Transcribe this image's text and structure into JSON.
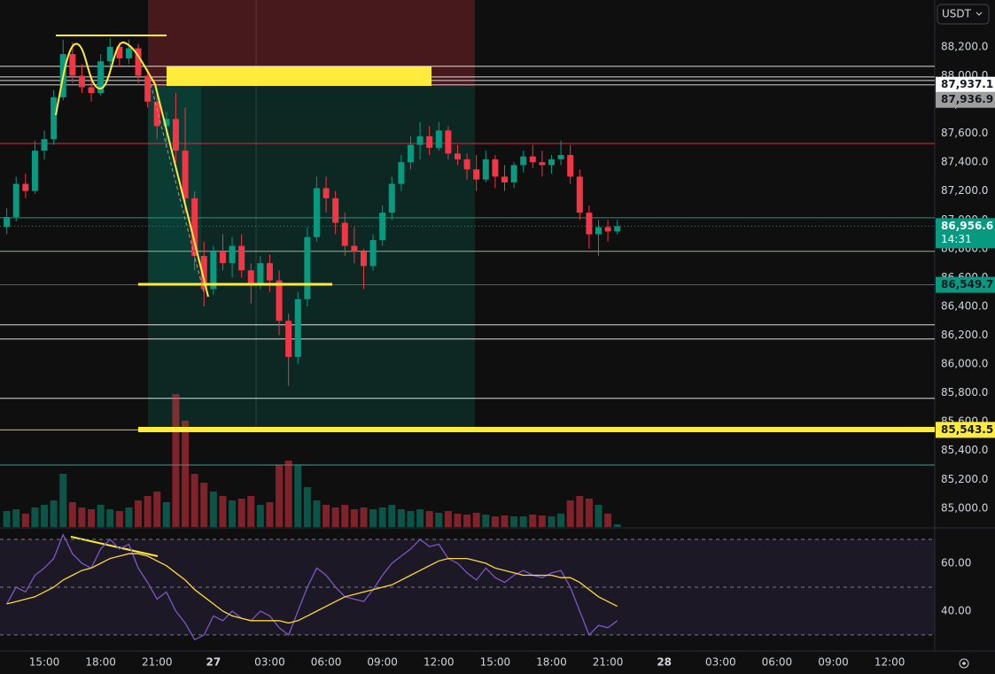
{
  "chart_data": {
    "type": "candlestick",
    "currency": "USDT",
    "x": [
      13,
      13.5,
      14,
      14.5,
      15,
      15.5,
      16,
      16.5,
      17,
      17.5,
      18,
      18.5,
      19,
      19.5,
      20,
      20.5,
      21,
      21.5,
      22,
      22.5,
      23,
      23.5,
      24,
      24.5,
      25,
      25.5,
      26,
      26.5,
      27,
      27.5,
      28,
      28.5,
      29,
      29.5,
      30,
      30.5,
      31,
      31.5,
      32,
      32.5,
      33,
      33.5,
      34,
      34.5,
      35,
      35.5,
      36,
      36.5,
      37,
      37.5,
      38,
      38.5,
      39,
      39.5,
      40,
      40.5,
      41,
      41.5,
      42,
      42.5,
      43,
      43.5,
      44,
      44.5,
      45,
      45.5
    ],
    "open": [
      86950,
      87020,
      87250,
      87200,
      87480,
      87560,
      87850,
      88150,
      88000,
      87920,
      87880,
      88100,
      88200,
      88120,
      88190,
      88000,
      87820,
      87650,
      87700,
      87480,
      87150,
      86750,
      86520,
      86780,
      86700,
      86820,
      86650,
      86560,
      86700,
      86580,
      86300,
      86050,
      86450,
      86880,
      87220,
      87150,
      86980,
      86820,
      86780,
      86680,
      86860,
      87050,
      87250,
      87400,
      87520,
      87580,
      87500,
      87620,
      87460,
      87420,
      87350,
      87280,
      87420,
      87300,
      87260,
      87380,
      87440,
      87400,
      87380,
      87420,
      87450,
      87300,
      87050,
      86900,
      86950,
      86920
    ],
    "high": [
      87080,
      87300,
      87320,
      87550,
      87620,
      87900,
      88250,
      88230,
      88080,
      88000,
      88150,
      88260,
      88230,
      88250,
      88220,
      88050,
      87880,
      87750,
      87880,
      87780,
      87200,
      86850,
      86820,
      86900,
      86880,
      86900,
      86700,
      86750,
      86760,
      86650,
      86350,
      86500,
      86950,
      87300,
      87300,
      87200,
      87050,
      86950,
      86800,
      86900,
      87100,
      87300,
      87450,
      87580,
      87680,
      87650,
      87680,
      87650,
      87520,
      87460,
      87450,
      87480,
      87450,
      87380,
      87400,
      87480,
      87520,
      87480,
      87450,
      87550,
      87520,
      87350,
      87100,
      87000,
      87000,
      87000
    ],
    "low": [
      86900,
      86990,
      87150,
      87180,
      87420,
      87520,
      87830,
      87950,
      87880,
      87820,
      87860,
      88050,
      88060,
      88080,
      87950,
      87780,
      87560,
      87500,
      87400,
      87050,
      86650,
      86400,
      86480,
      86650,
      86600,
      86600,
      86420,
      86520,
      86500,
      86200,
      85850,
      86000,
      86400,
      86850,
      87050,
      86900,
      86750,
      86700,
      86520,
      86650,
      86820,
      87000,
      87200,
      87350,
      87420,
      87450,
      87480,
      87420,
      87380,
      87280,
      87200,
      87260,
      87220,
      87200,
      87220,
      87330,
      87360,
      87300,
      87320,
      87380,
      87250,
      87000,
      86800,
      86750,
      86850,
      86900
    ],
    "close": [
      87020,
      87250,
      87200,
      87480,
      87560,
      87850,
      88150,
      88000,
      87920,
      87880,
      88100,
      88200,
      88120,
      88190,
      88000,
      87820,
      87650,
      87700,
      87480,
      87150,
      86750,
      86520,
      86780,
      86700,
      86820,
      86650,
      86560,
      86700,
      86580,
      86300,
      86050,
      86450,
      86880,
      87220,
      87150,
      86980,
      86820,
      86780,
      86680,
      86860,
      87050,
      87250,
      87400,
      87520,
      87580,
      87500,
      87620,
      87460,
      87420,
      87350,
      87280,
      87420,
      87300,
      87260,
      87380,
      87440,
      87400,
      87380,
      87420,
      87450,
      87300,
      87050,
      86900,
      86950,
      86920,
      86956.6
    ],
    "volume": [
      18,
      20,
      15,
      22,
      25,
      30,
      60,
      28,
      22,
      20,
      25,
      20,
      18,
      22,
      30,
      35,
      40,
      28,
      150,
      120,
      60,
      50,
      40,
      35,
      30,
      32,
      35,
      25,
      28,
      70,
      75,
      70,
      45,
      30,
      25,
      22,
      25,
      20,
      22,
      20,
      22,
      25,
      20,
      18,
      20,
      18,
      16,
      18,
      15,
      14,
      16,
      14,
      12,
      13,
      12,
      12,
      14,
      13,
      12,
      15,
      30,
      35,
      32,
      25,
      15,
      3
    ],
    "up_color": "#089981",
    "down_color": "#f23645",
    "volume_up_color": "rgba(8,153,129,0.5)",
    "volume_down_color": "rgba(242,54,69,0.5)",
    "xlim": [
      12.64,
      62.4
    ],
    "xticks": [
      {
        "value": 15,
        "label": "15:00"
      },
      {
        "value": 18,
        "label": "18:00"
      },
      {
        "value": 21,
        "label": "21:00"
      },
      {
        "value": 24,
        "label": "27"
      },
      {
        "value": 27,
        "label": "03:00"
      },
      {
        "value": 30,
        "label": "06:00"
      },
      {
        "value": 33,
        "label": "09:00"
      },
      {
        "value": 36,
        "label": "12:00"
      },
      {
        "value": 39,
        "label": "15:00"
      },
      {
        "value": 42,
        "label": "18:00"
      },
      {
        "value": 45,
        "label": "21:00"
      },
      {
        "value": 48,
        "label": "28"
      },
      {
        "value": 51,
        "label": "03:00"
      },
      {
        "value": 54,
        "label": "06:00"
      },
      {
        "value": 57,
        "label": "09:00"
      },
      {
        "value": 60,
        "label": "12:00"
      }
    ],
    "ylim": [
      84870,
      88525
    ],
    "yticks": [
      {
        "value": 85000,
        "label": "85,000.0"
      },
      {
        "value": 85200,
        "label": "85,200.0"
      },
      {
        "value": 85400,
        "label": "85,400.0"
      },
      {
        "value": 85600,
        "label": "85,600.0"
      },
      {
        "value": 85800,
        "label": "85,800.0"
      },
      {
        "value": 86000,
        "label": "86,000.0"
      },
      {
        "value": 86200,
        "label": "86,200.0"
      },
      {
        "value": 86400,
        "label": "86,400.0"
      },
      {
        "value": 86600,
        "label": "86,600.0"
      },
      {
        "value": 86800,
        "label": "86,800.0"
      },
      {
        "value": 87000,
        "label": "87,000.0"
      },
      {
        "value": 87200,
        "label": "87,200.0"
      },
      {
        "value": 87400,
        "label": "87,400.0"
      },
      {
        "value": 87600,
        "label": "87,600.0"
      },
      {
        "value": 87800,
        "label": "87,800.0"
      },
      {
        "value": 88000,
        "label": "88,000.0"
      },
      {
        "value": 88200,
        "label": "88,200.0"
      }
    ],
    "price_lines": [
      {
        "value": 88065,
        "color": "#ffffff"
      },
      {
        "value": 87991,
        "color": "#ffffff"
      },
      {
        "value": 87967,
        "color": "#ffffff"
      },
      {
        "value": 87937.1,
        "label": "87,937.1",
        "color": "#ffffff"
      },
      {
        "value": 87936.9,
        "label": "87,936.9",
        "color": "#9e9e9e"
      },
      {
        "value": 87530,
        "color": "#f23645"
      },
      {
        "value": 87015,
        "color": "#22ab94"
      },
      {
        "value": 86782,
        "color": "#a5d6a7"
      },
      {
        "value": 86549.7,
        "label": "86,549.7",
        "color": "#089981"
      },
      {
        "value": 86272,
        "color": "#ffffff"
      },
      {
        "value": 86174,
        "color": "#ffffff"
      },
      {
        "value": 85762,
        "color": "#ffffff"
      },
      {
        "value": 85543.5,
        "label": "85,543.5",
        "color": "#ffeb3b"
      },
      {
        "value": 85300,
        "color": "#4db6ac"
      }
    ],
    "last_price": {
      "value": 86956.6,
      "label": "86,956.6"
    },
    "countdown": "14:31",
    "rsi": {
      "values": [
        43,
        50,
        48,
        55,
        58,
        62,
        72,
        64,
        60,
        58,
        66,
        70,
        66,
        68,
        58,
        52,
        45,
        48,
        40,
        35,
        28,
        30,
        38,
        36,
        40,
        37,
        36,
        40,
        38,
        33,
        30,
        40,
        50,
        58,
        55,
        50,
        46,
        45,
        44,
        49,
        55,
        60,
        63,
        66,
        70,
        67,
        68,
        62,
        60,
        56,
        53,
        58,
        54,
        52,
        55,
        57,
        55,
        54,
        56,
        57,
        50,
        40,
        30,
        34,
        33,
        36
      ],
      "ma": [
        43,
        44,
        45,
        46,
        48,
        50,
        53,
        55,
        57,
        58,
        60,
        62,
        63,
        64,
        64,
        63,
        61,
        59,
        56,
        53,
        49,
        46,
        43,
        40,
        38,
        37,
        36,
        36,
        36,
        36,
        35,
        36,
        38,
        40,
        42,
        44,
        46,
        47,
        48,
        49,
        50,
        51,
        53,
        55,
        57,
        59,
        61,
        62,
        62,
        62,
        61,
        60,
        58,
        57,
        56,
        55,
        55,
        55,
        55,
        54,
        54,
        52,
        49,
        46,
        44,
        42
      ],
      "color": "#7e57c2",
      "ma_color": "#fdd835",
      "ylim": [
        23.3,
        74.1
      ],
      "yticks": [
        {
          "value": 60,
          "label": "60.00"
        },
        {
          "value": 40,
          "label": "40.00"
        }
      ],
      "levels": [
        30,
        50,
        70
      ]
    }
  }
}
